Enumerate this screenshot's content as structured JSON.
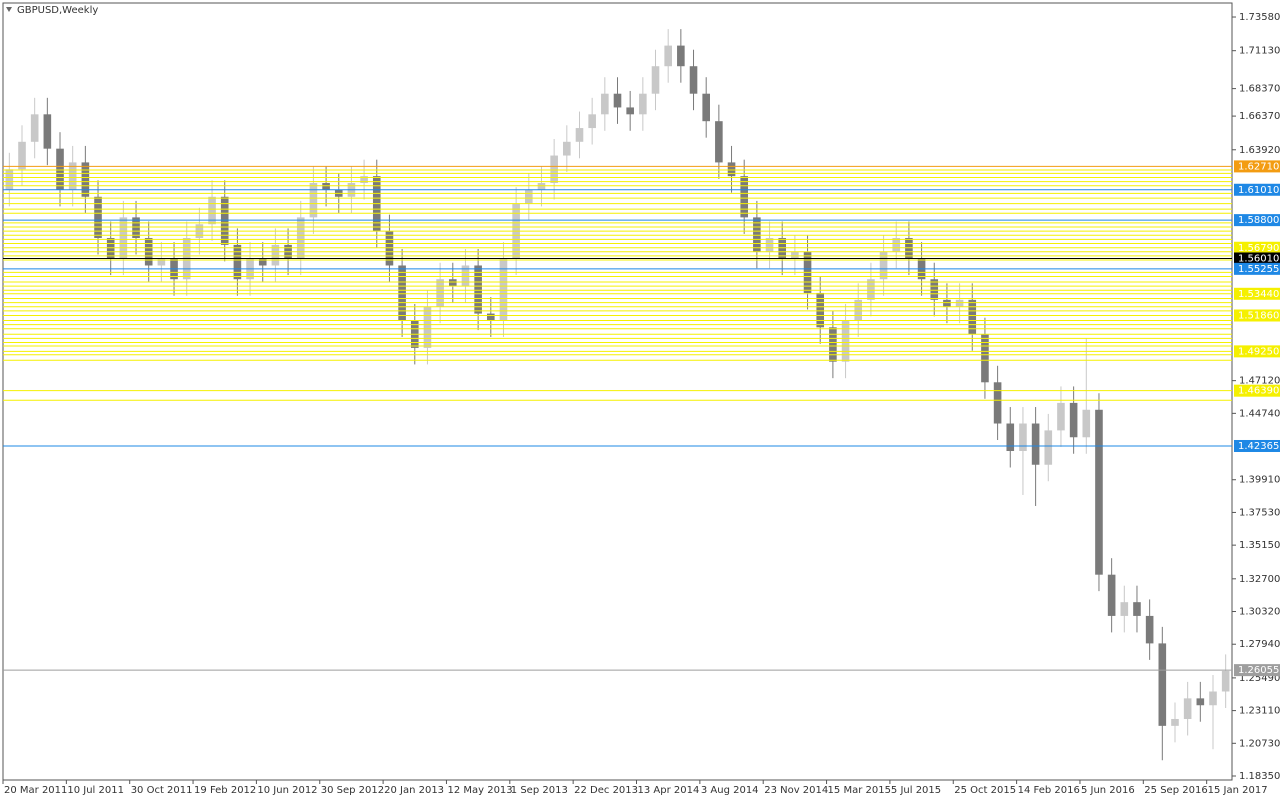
{
  "chart_data": {
    "type": "candlestick",
    "title": "GBPUSD,Weekly",
    "categories": [
      "20 Mar 2011",
      null,
      null,
      null,
      null,
      "10 Jul 2011",
      null,
      null,
      null,
      null,
      "30 Oct 2011",
      null,
      null,
      null,
      null,
      "19 Feb 2012",
      null,
      null,
      null,
      null,
      "10 Jun 2012",
      null,
      null,
      null,
      null,
      "30 Sep 2012",
      null,
      null,
      null,
      null,
      "20 Jan 2013",
      null,
      null,
      null,
      null,
      "12 May 2013",
      null,
      null,
      null,
      null,
      "1 Sep 2013",
      null,
      null,
      null,
      null,
      "22 Dec 2013",
      null,
      null,
      null,
      null,
      "13 Apr 2014",
      null,
      null,
      null,
      null,
      "3 Aug 2014",
      null,
      null,
      null,
      null,
      "23 Nov 2014",
      null,
      null,
      null,
      null,
      "15 Mar 2015",
      null,
      null,
      null,
      null,
      "5 Jul 2015",
      null,
      null,
      null,
      null,
      "25 Oct 2015",
      null,
      null,
      null,
      null,
      "14 Feb 2016",
      null,
      null,
      null,
      null,
      "5 Jun 2016",
      null,
      null,
      null,
      null,
      "25 Sep 2016",
      null,
      null,
      null,
      null,
      "15 Jan 2017",
      null
    ],
    "open": [
      1.61,
      1.625,
      1.645,
      1.665,
      1.64,
      1.61,
      1.63,
      1.605,
      1.575,
      1.56,
      1.59,
      1.575,
      1.555,
      1.56,
      1.545,
      1.575,
      1.585,
      1.605,
      1.57,
      1.545,
      1.56,
      1.555,
      1.57,
      1.56,
      1.59,
      1.615,
      1.61,
      1.605,
      1.615,
      1.62,
      1.58,
      1.555,
      1.515,
      1.495,
      1.525,
      1.545,
      1.54,
      1.555,
      1.52,
      1.515,
      1.56,
      1.6,
      1.61,
      1.615,
      1.635,
      1.645,
      1.655,
      1.665,
      1.68,
      1.67,
      1.665,
      1.68,
      1.7,
      1.715,
      1.7,
      1.68,
      1.66,
      1.63,
      1.62,
      1.59,
      1.565,
      1.575,
      1.56,
      1.565,
      1.535,
      1.51,
      1.485,
      1.515,
      1.53,
      1.545,
      1.565,
      1.575,
      1.56,
      1.545,
      1.53,
      1.525,
      1.53,
      1.505,
      1.47,
      1.44,
      1.42,
      1.44,
      1.41,
      1.435,
      1.455,
      1.43,
      1.45,
      1.33,
      1.3,
      1.31,
      1.3,
      1.28,
      1.22,
      1.225,
      1.24,
      1.235,
      1.245
    ],
    "high": [
      1.637,
      1.657,
      1.677,
      1.677,
      1.652,
      1.642,
      1.642,
      1.617,
      1.587,
      1.602,
      1.602,
      1.587,
      1.572,
      1.572,
      1.587,
      1.597,
      1.617,
      1.617,
      1.582,
      1.572,
      1.572,
      1.582,
      1.582,
      1.602,
      1.627,
      1.627,
      1.622,
      1.627,
      1.632,
      1.632,
      1.592,
      1.567,
      1.527,
      1.537,
      1.557,
      1.557,
      1.567,
      1.567,
      1.532,
      1.572,
      1.612,
      1.622,
      1.627,
      1.647,
      1.657,
      1.667,
      1.677,
      1.692,
      1.692,
      1.682,
      1.692,
      1.712,
      1.727,
      1.727,
      1.712,
      1.692,
      1.672,
      1.642,
      1.632,
      1.602,
      1.587,
      1.587,
      1.577,
      1.577,
      1.547,
      1.522,
      1.527,
      1.542,
      1.557,
      1.577,
      1.587,
      1.587,
      1.572,
      1.557,
      1.542,
      1.542,
      1.542,
      1.517,
      1.482,
      1.452,
      1.452,
      1.452,
      1.447,
      1.467,
      1.467,
      1.502,
      1.462,
      1.342,
      1.322,
      1.322,
      1.312,
      1.292,
      1.237,
      1.252,
      1.252,
      1.257,
      1.272
    ],
    "low": [
      1.598,
      1.613,
      1.633,
      1.628,
      1.598,
      1.598,
      1.593,
      1.563,
      1.548,
      1.548,
      1.563,
      1.543,
      1.543,
      1.533,
      1.533,
      1.563,
      1.573,
      1.558,
      1.533,
      1.533,
      1.543,
      1.543,
      1.548,
      1.548,
      1.578,
      1.598,
      1.593,
      1.593,
      1.603,
      1.568,
      1.543,
      1.503,
      1.483,
      1.483,
      1.513,
      1.528,
      1.528,
      1.508,
      1.503,
      1.503,
      1.548,
      1.588,
      1.598,
      1.603,
      1.623,
      1.633,
      1.643,
      1.653,
      1.658,
      1.653,
      1.653,
      1.668,
      1.688,
      1.688,
      1.668,
      1.648,
      1.618,
      1.608,
      1.578,
      1.553,
      1.553,
      1.548,
      1.548,
      1.523,
      1.498,
      1.473,
      1.473,
      1.503,
      1.518,
      1.533,
      1.553,
      1.548,
      1.533,
      1.518,
      1.513,
      1.513,
      1.493,
      1.458,
      1.428,
      1.408,
      1.388,
      1.38,
      1.398,
      1.423,
      1.418,
      1.418,
      1.318,
      1.288,
      1.288,
      1.288,
      1.268,
      1.195,
      1.208,
      1.213,
      1.223,
      1.203,
      1.233
    ],
    "close": [
      1.625,
      1.645,
      1.665,
      1.64,
      1.61,
      1.63,
      1.605,
      1.575,
      1.56,
      1.59,
      1.575,
      1.555,
      1.56,
      1.545,
      1.575,
      1.585,
      1.605,
      1.57,
      1.545,
      1.56,
      1.555,
      1.57,
      1.56,
      1.59,
      1.615,
      1.61,
      1.605,
      1.615,
      1.62,
      1.58,
      1.555,
      1.515,
      1.495,
      1.525,
      1.545,
      1.54,
      1.555,
      1.52,
      1.515,
      1.56,
      1.6,
      1.61,
      1.615,
      1.635,
      1.645,
      1.655,
      1.665,
      1.68,
      1.67,
      1.665,
      1.68,
      1.7,
      1.715,
      1.7,
      1.68,
      1.66,
      1.63,
      1.62,
      1.59,
      1.565,
      1.575,
      1.56,
      1.565,
      1.535,
      1.51,
      1.485,
      1.515,
      1.53,
      1.545,
      1.565,
      1.575,
      1.56,
      1.545,
      1.53,
      1.525,
      1.53,
      1.505,
      1.47,
      1.44,
      1.42,
      1.44,
      1.41,
      1.435,
      1.455,
      1.43,
      1.45,
      1.33,
      1.3,
      1.31,
      1.3,
      1.28,
      1.22,
      1.225,
      1.24,
      1.235,
      1.245,
      1.26
    ],
    "up_color": "#c8c8c8",
    "down_color": "#7a7a7a",
    "ylim": [
      1.1806,
      1.746
    ],
    "yticks": [
      {
        "value": 1.7358,
        "label": "1.73580"
      },
      {
        "value": 1.7113,
        "label": "1.71130"
      },
      {
        "value": 1.6837,
        "label": "1.68370"
      },
      {
        "value": 1.6637,
        "label": "1.66370"
      },
      {
        "value": 1.6392,
        "label": "1.63920"
      },
      {
        "value": 1.4712,
        "label": "1.47120"
      },
      {
        "value": 1.4474,
        "label": "1.44740"
      },
      {
        "value": 1.3991,
        "label": "1.39910"
      },
      {
        "value": 1.3753,
        "label": "1.37530"
      },
      {
        "value": 1.3515,
        "label": "1.35150"
      },
      {
        "value": 1.327,
        "label": "1.32700"
      },
      {
        "value": 1.3032,
        "label": "1.30320"
      },
      {
        "value": 1.2794,
        "label": "1.27940"
      },
      {
        "value": 1.2549,
        "label": "1.25490"
      },
      {
        "value": 1.2311,
        "label": "1.23110"
      },
      {
        "value": 1.2073,
        "label": "1.20730"
      },
      {
        "value": 1.1835,
        "label": "1.18350"
      }
    ],
    "levels": [
      {
        "value": 1.6245,
        "color": "#f5f000"
      },
      {
        "value": 1.622,
        "color": "#f5f000"
      },
      {
        "value": 1.619,
        "color": "#f5f000"
      },
      {
        "value": 1.616,
        "color": "#f5f000"
      },
      {
        "value": 1.613,
        "color": "#f5f000"
      },
      {
        "value": 1.6075,
        "color": "#f5f000"
      },
      {
        "value": 1.604,
        "color": "#f5f000"
      },
      {
        "value": 1.6,
        "color": "#f5f000"
      },
      {
        "value": 1.596,
        "color": "#f5f000"
      },
      {
        "value": 1.593,
        "color": "#f5f000"
      },
      {
        "value": 1.586,
        "color": "#f5f000"
      },
      {
        "value": 1.583,
        "color": "#f5f000"
      },
      {
        "value": 1.58,
        "color": "#f5f000"
      },
      {
        "value": 1.577,
        "color": "#f5f000"
      },
      {
        "value": 1.574,
        "color": "#f5f000"
      },
      {
        "value": 1.571,
        "color": "#f5f000"
      },
      {
        "value": 1.565,
        "color": "#f5f000"
      },
      {
        "value": 1.562,
        "color": "#f5f000"
      },
      {
        "value": 1.559,
        "color": "#f5f000"
      },
      {
        "value": 1.55,
        "color": "#f5f000"
      },
      {
        "value": 1.547,
        "color": "#f5f000"
      },
      {
        "value": 1.543,
        "color": "#f5f000"
      },
      {
        "value": 1.54,
        "color": "#f5f000"
      },
      {
        "value": 1.537,
        "color": "#f5f000"
      },
      {
        "value": 1.531,
        "color": "#f5f000"
      },
      {
        "value": 1.528,
        "color": "#f5f000"
      },
      {
        "value": 1.525,
        "color": "#f5f000"
      },
      {
        "value": 1.522,
        "color": "#f5f000"
      },
      {
        "value": 1.515,
        "color": "#f5f000"
      },
      {
        "value": 1.512,
        "color": "#f5f000"
      },
      {
        "value": 1.509,
        "color": "#f5f000"
      },
      {
        "value": 1.505,
        "color": "#f5f000"
      },
      {
        "value": 1.502,
        "color": "#f5f000"
      },
      {
        "value": 1.499,
        "color": "#f5f000"
      },
      {
        "value": 1.49,
        "color": "#f5f000"
      },
      {
        "value": 1.486,
        "color": "#f5f000"
      },
      {
        "value": 1.6271,
        "label": "1.62710",
        "color": "#f39c12"
      },
      {
        "value": 1.6101,
        "label": "1.61010",
        "color": "#1e88e5"
      },
      {
        "value": 1.588,
        "label": "1.58800",
        "color": "#1e88e5"
      },
      {
        "value": 1.5679,
        "label": "1.56790",
        "color": "#f5f000"
      },
      {
        "value": 1.5601,
        "label": "1.56010",
        "color": "#000000"
      },
      {
        "value": 1.55255,
        "color": "#1e88e5"
      },
      {
        "value": 1.5344,
        "label": "1.53440",
        "color": "#f5f000"
      },
      {
        "value": 1.5186,
        "label": "1.51860",
        "color": "#f5f000"
      },
      {
        "value": 1.49645,
        "color": "#f5f000"
      },
      {
        "value": 1.4925,
        "label": "1.49250",
        "color": "#f5f000"
      },
      {
        "value": 1.4639,
        "label": "1.46390",
        "color": "#f5f000"
      },
      {
        "value": 1.45695,
        "color": "#f5f000"
      },
      {
        "value": 1.42365,
        "color": "#1e88e5"
      },
      {
        "value": 1.26055,
        "color": "#9e9e9e"
      }
    ]
  }
}
